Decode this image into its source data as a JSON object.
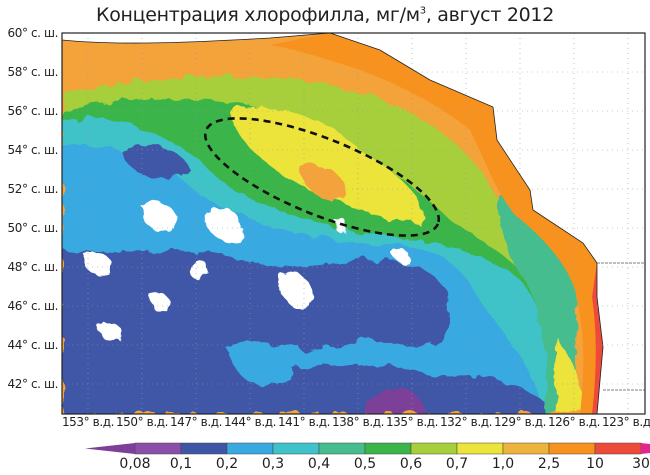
{
  "title": {
    "text": "Концентрация хлорофилла, мг/м",
    "sup": "3",
    "suffix": ", август 2012"
  },
  "y_ticks": [
    "60° с. ш.",
    "58° с. ш.",
    "56° с. ш.",
    "54° с. ш.",
    "52° с. ш.",
    "50° с. ш.",
    "48° с. ш.",
    "46° с. ш.",
    "44° с. ш.",
    "42° с. ш."
  ],
  "x_ticks": [
    "153° в.д.",
    "150° в.д.",
    "147° в.д.",
    "144° в.д.",
    "141° в.д.",
    "138° в.д.",
    "135° в.д.",
    "132° в.д.",
    "129° в.д.",
    "126° в.д.",
    "123° в.д."
  ],
  "legend": {
    "labels": [
      "0,08",
      "0,1",
      "0,2",
      "0,3",
      "0,4",
      "0,5",
      "0,6",
      "0,7",
      "1,0",
      "2,5",
      "10",
      "30"
    ],
    "colors": [
      "#7d3f98",
      "#8a4fa8",
      "#3f56a6",
      "#38a9e1",
      "#3fc2c9",
      "#45bd8f",
      "#3bb54a",
      "#a6cf3b",
      "#ece43b",
      "#eeb33b",
      "#f7921e",
      "#ee4a3b",
      "#e3268f"
    ]
  },
  "annotation": {
    "type": "dashed-ellipse",
    "region": "high chlorophyll area"
  }
}
